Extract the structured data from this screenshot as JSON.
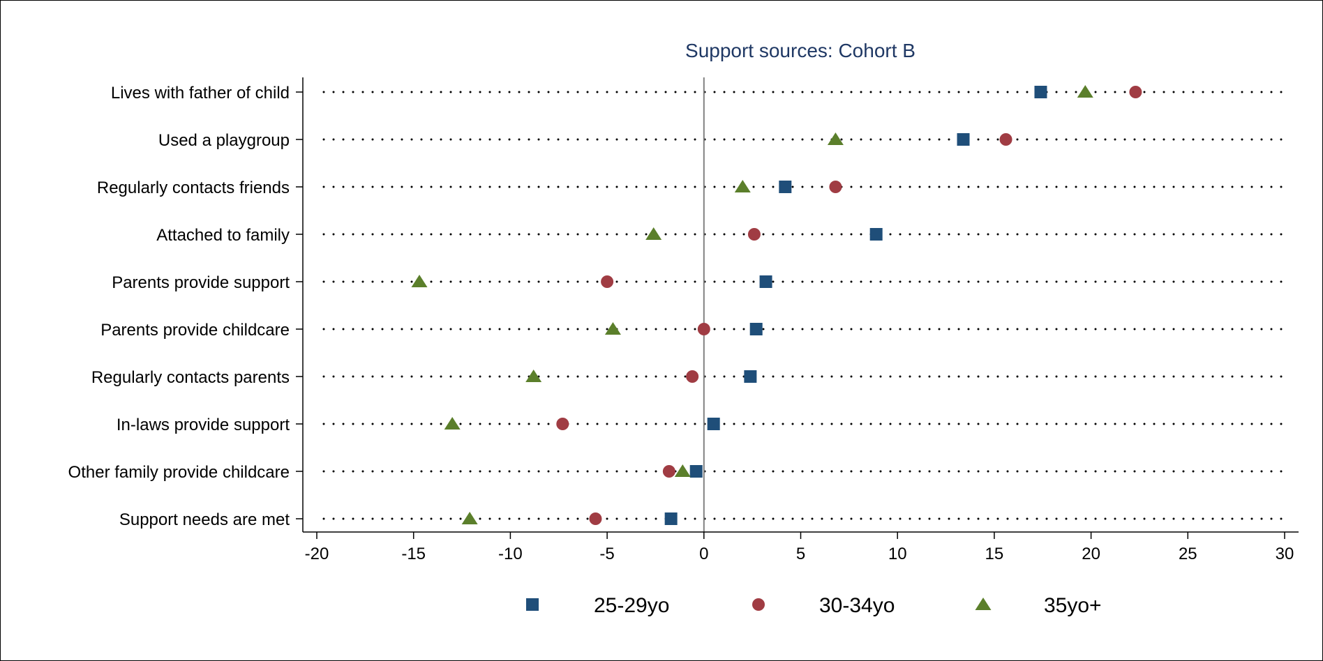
{
  "chart_data": {
    "type": "scatter",
    "orientation": "horizontal-dot",
    "title": "Support sources: Cohort B",
    "xlabel": "",
    "ylabel": "",
    "xlim": [
      -20,
      30
    ],
    "xticks": [
      -20,
      -15,
      -10,
      -5,
      0,
      5,
      10,
      15,
      20,
      25,
      30
    ],
    "reference_line": 0,
    "grid": "dotted horizontal",
    "legend_position": "bottom",
    "categories": [
      "Lives with father of child",
      "Used a playgroup",
      "Regularly contacts friends",
      "Attached to family",
      "Parents provide support",
      "Parents provide childcare",
      "Regularly contacts parents",
      "In-laws provide support",
      "Other family provide childcare",
      "Support needs are met"
    ],
    "series": [
      {
        "name": "25-29yo",
        "marker": "square",
        "color": "#1f4e79",
        "values": [
          17.4,
          13.4,
          4.2,
          8.9,
          3.2,
          2.7,
          2.4,
          0.5,
          -0.4,
          -1.7
        ]
      },
      {
        "name": "30-34yo",
        "marker": "circle",
        "color": "#a03c43",
        "values": [
          22.3,
          15.6,
          6.8,
          2.6,
          -5.0,
          0.0,
          -0.6,
          -7.3,
          -1.8,
          -5.6
        ]
      },
      {
        "name": "35yo+",
        "marker": "triangle",
        "color": "#5b7f2b",
        "values": [
          19.7,
          6.8,
          2.0,
          -2.6,
          -14.7,
          -4.7,
          -8.8,
          -13.0,
          -1.1,
          -12.1
        ]
      }
    ]
  }
}
